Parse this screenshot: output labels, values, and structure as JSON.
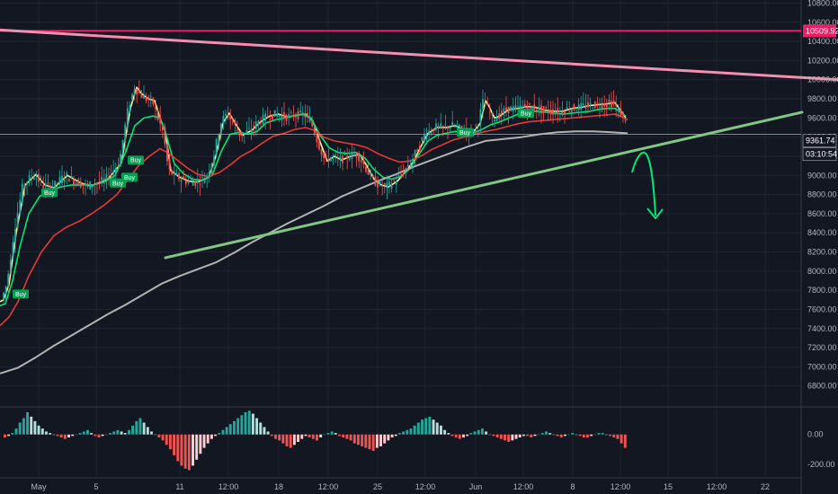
{
  "chart_data": {
    "type": "candlestick",
    "title": "",
    "xlabel": "",
    "ylabel": "",
    "grid": true,
    "ylim": [
      6600,
      10800
    ],
    "y_ticks": [
      6800,
      7000,
      7200,
      7400,
      7600,
      7800,
      8000,
      8200,
      8400,
      8600,
      8800,
      9000,
      9200,
      9400,
      9600,
      9800,
      10000,
      10200,
      10400,
      10600,
      10800
    ],
    "x_tick_labels": [
      "May",
      "5",
      "11",
      "12:00",
      "18",
      "12:00",
      "25",
      "12:00",
      "Jun",
      "12:00",
      "8",
      "12:00",
      "15",
      "12:00",
      "22"
    ],
    "price_tags": [
      {
        "value": 10509.92,
        "label": "10509.92",
        "color": "#e91e63"
      },
      {
        "value": 9361.74,
        "label": "9361.74",
        "color": "#131722"
      },
      {
        "label": "03:10:54",
        "color": "#131722"
      }
    ],
    "series": [
      {
        "name": "",
        "kind": "ema_fast",
        "color": "#fff59d",
        "points": [
          [
            0,
            7680
          ],
          [
            4,
            7700
          ],
          [
            10,
            7860
          ],
          [
            18,
            8400
          ],
          [
            28,
            8900
          ],
          [
            40,
            9010
          ],
          [
            50,
            8900
          ],
          [
            60,
            8870
          ],
          [
            75,
            9000
          ],
          [
            90,
            8920
          ],
          [
            100,
            8890
          ],
          [
            110,
            8920
          ],
          [
            120,
            8960
          ],
          [
            135,
            9130
          ],
          [
            145,
            9700
          ],
          [
            152,
            9920
          ],
          [
            158,
            9850
          ],
          [
            165,
            9800
          ],
          [
            172,
            9780
          ],
          [
            178,
            9600
          ],
          [
            184,
            9450
          ],
          [
            190,
            9050
          ],
          [
            200,
            8980
          ],
          [
            210,
            8940
          ],
          [
            220,
            8930
          ],
          [
            232,
            8980
          ],
          [
            240,
            9200
          ],
          [
            248,
            9550
          ],
          [
            255,
            9650
          ],
          [
            262,
            9540
          ],
          [
            270,
            9420
          ],
          [
            280,
            9470
          ],
          [
            290,
            9560
          ],
          [
            300,
            9620
          ],
          [
            310,
            9640
          ],
          [
            320,
            9610
          ],
          [
            330,
            9630
          ],
          [
            340,
            9640
          ],
          [
            348,
            9570
          ],
          [
            356,
            9350
          ],
          [
            364,
            9150
          ],
          [
            372,
            9200
          ],
          [
            380,
            9160
          ],
          [
            390,
            9200
          ],
          [
            400,
            9220
          ],
          [
            408,
            9100
          ],
          [
            416,
            8960
          ],
          [
            424,
            8900
          ],
          [
            432,
            8880
          ],
          [
            442,
            8940
          ],
          [
            452,
            9050
          ],
          [
            460,
            9150
          ],
          [
            468,
            9300
          ],
          [
            476,
            9440
          ],
          [
            486,
            9500
          ],
          [
            496,
            9500
          ],
          [
            506,
            9520
          ],
          [
            516,
            9480
          ],
          [
            526,
            9450
          ],
          [
            534,
            9540
          ],
          [
            540,
            9780
          ],
          [
            544,
            9720
          ],
          [
            550,
            9600
          ],
          [
            556,
            9620
          ],
          [
            566,
            9690
          ],
          [
            576,
            9700
          ],
          [
            586,
            9720
          ],
          [
            596,
            9710
          ],
          [
            606,
            9680
          ],
          [
            616,
            9670
          ],
          [
            626,
            9670
          ],
          [
            636,
            9700
          ],
          [
            646,
            9710
          ],
          [
            656,
            9730
          ],
          [
            666,
            9740
          ],
          [
            676,
            9750
          ],
          [
            684,
            9760
          ],
          [
            690,
            9680
          ],
          [
            696,
            9600
          ]
        ]
      },
      {
        "name": "",
        "kind": "ema_mid",
        "color": "#00e676",
        "points": [
          [
            0,
            7640
          ],
          [
            6,
            7660
          ],
          [
            14,
            7900
          ],
          [
            22,
            8250
          ],
          [
            32,
            8600
          ],
          [
            44,
            8780
          ],
          [
            56,
            8850
          ],
          [
            68,
            8880
          ],
          [
            80,
            8900
          ],
          [
            92,
            8900
          ],
          [
            104,
            8900
          ],
          [
            116,
            8930
          ],
          [
            128,
            9000
          ],
          [
            140,
            9250
          ],
          [
            150,
            9520
          ],
          [
            160,
            9600
          ],
          [
            170,
            9620
          ],
          [
            178,
            9600
          ],
          [
            184,
            9450
          ],
          [
            194,
            9120
          ],
          [
            204,
            9020
          ],
          [
            214,
            8960
          ],
          [
            224,
            8950
          ],
          [
            236,
            9000
          ],
          [
            246,
            9250
          ],
          [
            256,
            9430
          ],
          [
            266,
            9450
          ],
          [
            276,
            9430
          ],
          [
            286,
            9460
          ],
          [
            296,
            9550
          ],
          [
            306,
            9580
          ],
          [
            316,
            9600
          ],
          [
            326,
            9620
          ],
          [
            336,
            9640
          ],
          [
            346,
            9600
          ],
          [
            356,
            9420
          ],
          [
            366,
            9290
          ],
          [
            376,
            9240
          ],
          [
            386,
            9230
          ],
          [
            396,
            9240
          ],
          [
            406,
            9180
          ],
          [
            416,
            9060
          ],
          [
            426,
            8980
          ],
          [
            436,
            8960
          ],
          [
            446,
            8990
          ],
          [
            456,
            9070
          ],
          [
            466,
            9220
          ],
          [
            476,
            9360
          ],
          [
            486,
            9420
          ],
          [
            496,
            9440
          ],
          [
            506,
            9460
          ],
          [
            516,
            9450
          ],
          [
            526,
            9440
          ],
          [
            536,
            9480
          ],
          [
            546,
            9530
          ],
          [
            556,
            9560
          ],
          [
            566,
            9600
          ],
          [
            576,
            9640
          ],
          [
            586,
            9660
          ],
          [
            596,
            9670
          ],
          [
            606,
            9660
          ],
          [
            616,
            9650
          ],
          [
            626,
            9640
          ],
          [
            636,
            9650
          ],
          [
            646,
            9660
          ],
          [
            656,
            9670
          ],
          [
            666,
            9690
          ],
          [
            676,
            9700
          ],
          [
            684,
            9700
          ],
          [
            690,
            9660
          ],
          [
            696,
            9620
          ]
        ]
      },
      {
        "name": "",
        "kind": "ema_slow",
        "color": "#e53935",
        "points": [
          [
            0,
            7430
          ],
          [
            10,
            7520
          ],
          [
            20,
            7680
          ],
          [
            32,
            7950
          ],
          [
            46,
            8200
          ],
          [
            60,
            8370
          ],
          [
            74,
            8460
          ],
          [
            88,
            8520
          ],
          [
            102,
            8600
          ],
          [
            116,
            8690
          ],
          [
            130,
            8800
          ],
          [
            142,
            8950
          ],
          [
            154,
            9100
          ],
          [
            166,
            9200
          ],
          [
            178,
            9280
          ],
          [
            186,
            9240
          ],
          [
            196,
            9170
          ],
          [
            208,
            9080
          ],
          [
            220,
            9010
          ],
          [
            232,
            8990
          ],
          [
            244,
            9030
          ],
          [
            256,
            9110
          ],
          [
            268,
            9200
          ],
          [
            280,
            9260
          ],
          [
            292,
            9340
          ],
          [
            304,
            9410
          ],
          [
            316,
            9440
          ],
          [
            328,
            9480
          ],
          [
            340,
            9500
          ],
          [
            350,
            9470
          ],
          [
            360,
            9400
          ],
          [
            372,
            9360
          ],
          [
            384,
            9340
          ],
          [
            396,
            9320
          ],
          [
            408,
            9290
          ],
          [
            420,
            9230
          ],
          [
            432,
            9180
          ],
          [
            444,
            9140
          ],
          [
            456,
            9150
          ],
          [
            468,
            9200
          ],
          [
            480,
            9270
          ],
          [
            492,
            9320
          ],
          [
            504,
            9370
          ],
          [
            516,
            9400
          ],
          [
            528,
            9430
          ],
          [
            540,
            9460
          ],
          [
            552,
            9480
          ],
          [
            564,
            9510
          ],
          [
            576,
            9540
          ],
          [
            588,
            9560
          ],
          [
            600,
            9570
          ],
          [
            612,
            9580
          ],
          [
            624,
            9590
          ],
          [
            636,
            9600
          ],
          [
            648,
            9610
          ],
          [
            660,
            9620
          ],
          [
            672,
            9630
          ],
          [
            684,
            9640
          ],
          [
            690,
            9620
          ],
          [
            698,
            9580
          ]
        ]
      },
      {
        "name": "",
        "kind": "ma_long",
        "color": "#b2b2b2",
        "points": [
          [
            0,
            6930
          ],
          [
            20,
            6990
          ],
          [
            40,
            7100
          ],
          [
            60,
            7220
          ],
          [
            80,
            7330
          ],
          [
            100,
            7440
          ],
          [
            120,
            7550
          ],
          [
            140,
            7650
          ],
          [
            160,
            7760
          ],
          [
            180,
            7870
          ],
          [
            200,
            7950
          ],
          [
            220,
            8020
          ],
          [
            240,
            8090
          ],
          [
            260,
            8190
          ],
          [
            280,
            8300
          ],
          [
            300,
            8400
          ],
          [
            320,
            8500
          ],
          [
            340,
            8590
          ],
          [
            360,
            8680
          ],
          [
            380,
            8780
          ],
          [
            400,
            8860
          ],
          [
            420,
            8940
          ],
          [
            440,
            9010
          ],
          [
            460,
            9090
          ],
          [
            480,
            9160
          ],
          [
            500,
            9230
          ],
          [
            520,
            9300
          ],
          [
            540,
            9360
          ],
          [
            560,
            9380
          ],
          [
            580,
            9400
          ],
          [
            600,
            9430
          ],
          [
            620,
            9450
          ],
          [
            640,
            9460
          ],
          [
            660,
            9460
          ],
          [
            680,
            9450
          ],
          [
            698,
            9440
          ]
        ]
      }
    ],
    "trendlines": [
      {
        "color": "#f48fb1",
        "points": [
          [
            0,
            10520
          ],
          [
            932,
            10000
          ]
        ]
      },
      {
        "color": "#81c784",
        "points": [
          [
            184,
            8140
          ],
          [
            892,
            9660
          ]
        ]
      }
    ],
    "horizontal_levels": [
      {
        "value": 10509.92,
        "color": "#e91e63"
      },
      {
        "value": 9430,
        "color": "#b2b5be"
      }
    ],
    "annotations": [
      {
        "kind": "arrow",
        "color": "#00e676",
        "text": ""
      }
    ],
    "buy_labels": [
      {
        "text": "Buy",
        "x": 14,
        "value": 7760
      },
      {
        "text": "Buy",
        "x": 46,
        "value": 8820
      },
      {
        "text": "Buy",
        "x": 122,
        "value": 8920
      },
      {
        "text": "Buy",
        "x": 135,
        "value": 8980
      },
      {
        "text": "Buy",
        "x": 142,
        "value": 9160
      },
      {
        "text": "Buy",
        "x": 508,
        "value": 9450
      },
      {
        "text": "Buy",
        "x": 576,
        "value": 9650
      }
    ],
    "oscillator": {
      "ylim": [
        -280,
        180
      ],
      "ticks": [
        0.0,
        -200.0
      ],
      "tick_labels": [
        "0.00",
        "-200.00"
      ],
      "positive_color": "#26a69a",
      "negative_color": "#ef5350",
      "values": [
        -20,
        -10,
        10,
        40,
        80,
        110,
        150,
        120,
        90,
        60,
        40,
        20,
        10,
        0,
        -10,
        -20,
        -30,
        -20,
        -10,
        0,
        10,
        20,
        30,
        10,
        -10,
        -20,
        -10,
        0,
        10,
        20,
        30,
        20,
        10,
        30,
        60,
        90,
        110,
        80,
        50,
        20,
        0,
        -20,
        -40,
        -70,
        -100,
        -140,
        -180,
        -210,
        -230,
        -240,
        -210,
        -170,
        -130,
        -90,
        -60,
        -30,
        -10,
        10,
        30,
        50,
        70,
        90,
        110,
        130,
        150,
        160,
        140,
        110,
        80,
        50,
        20,
        -10,
        -30,
        -40,
        -60,
        -80,
        -90,
        -70,
        -50,
        -30,
        -10,
        -20,
        -30,
        -40,
        -20,
        0,
        10,
        20,
        10,
        -10,
        -20,
        -30,
        -40,
        -60,
        -70,
        -80,
        -90,
        -100,
        -110,
        -90,
        -80,
        -60,
        -40,
        -20,
        -10,
        10,
        20,
        30,
        40,
        60,
        80,
        100,
        110,
        120,
        100,
        80,
        60,
        30,
        10,
        -10,
        -20,
        -30,
        -20,
        -10,
        10,
        20,
        30,
        40,
        20,
        0,
        -10,
        -20,
        -30,
        -40,
        -50,
        -40,
        -30,
        -20,
        -10,
        -10,
        -20,
        -10,
        0,
        10,
        20,
        10,
        0,
        -10,
        -20,
        -10,
        0,
        10,
        0,
        -10,
        -20,
        -20,
        -10,
        0,
        10,
        10,
        0,
        -10,
        -20,
        -30,
        -60,
        -90
      ]
    },
    "ohlc_window": {
      "x_range": [
        4,
        698
      ],
      "note": ""
    }
  }
}
